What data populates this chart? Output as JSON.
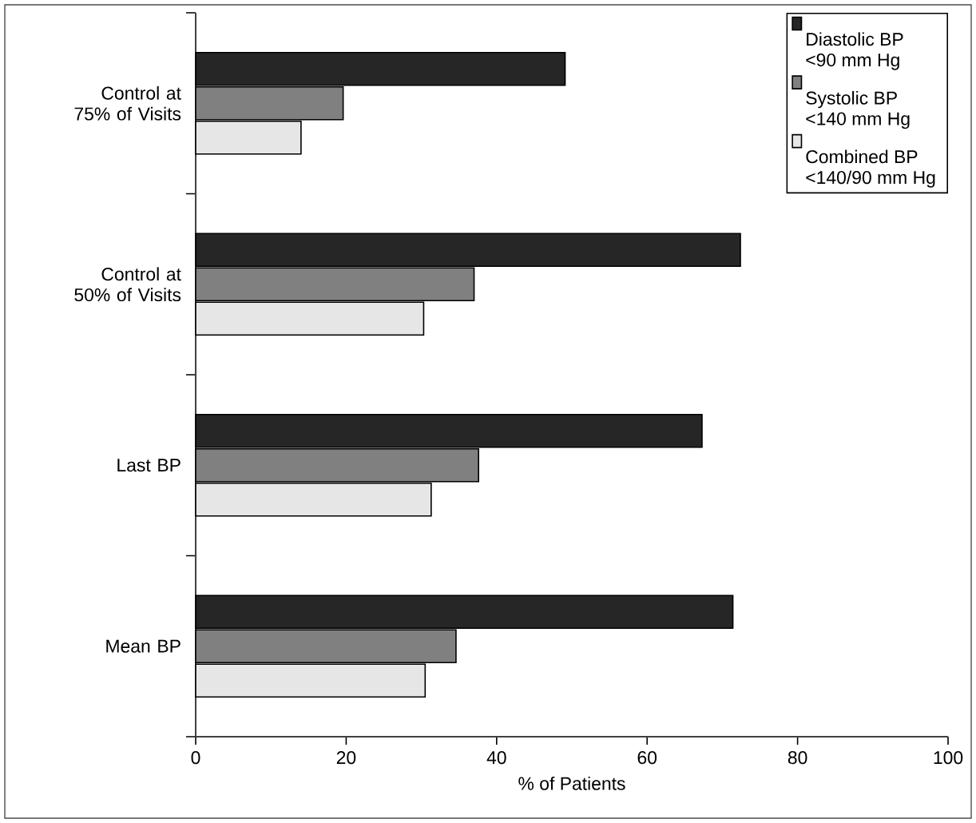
{
  "chart_data": {
    "type": "bar",
    "orientation": "horizontal",
    "xlabel": "% of Patients",
    "categories": [
      "Control at 75% of Visits",
      "Control at 50% of Visits",
      "Last BP",
      "Mean BP"
    ],
    "series": [
      {
        "name": "Diastolic BP <90 mm Hg",
        "color": "#262626",
        "values": [
          49.1,
          72.4,
          67.3,
          71.4
        ]
      },
      {
        "name": "Systolic BP <140 mm Hg",
        "color": "#808080",
        "values": [
          19.6,
          37.0,
          37.6,
          34.6
        ]
      },
      {
        "name": "Combined BP <140/90 mm Hg",
        "color": "#e6e6e6",
        "values": [
          14.0,
          30.3,
          31.3,
          30.5
        ]
      }
    ],
    "xlim": [
      0,
      100
    ],
    "xticks": [
      0,
      20,
      40,
      60,
      80,
      100
    ],
    "legend": "top right",
    "grid": false
  }
}
